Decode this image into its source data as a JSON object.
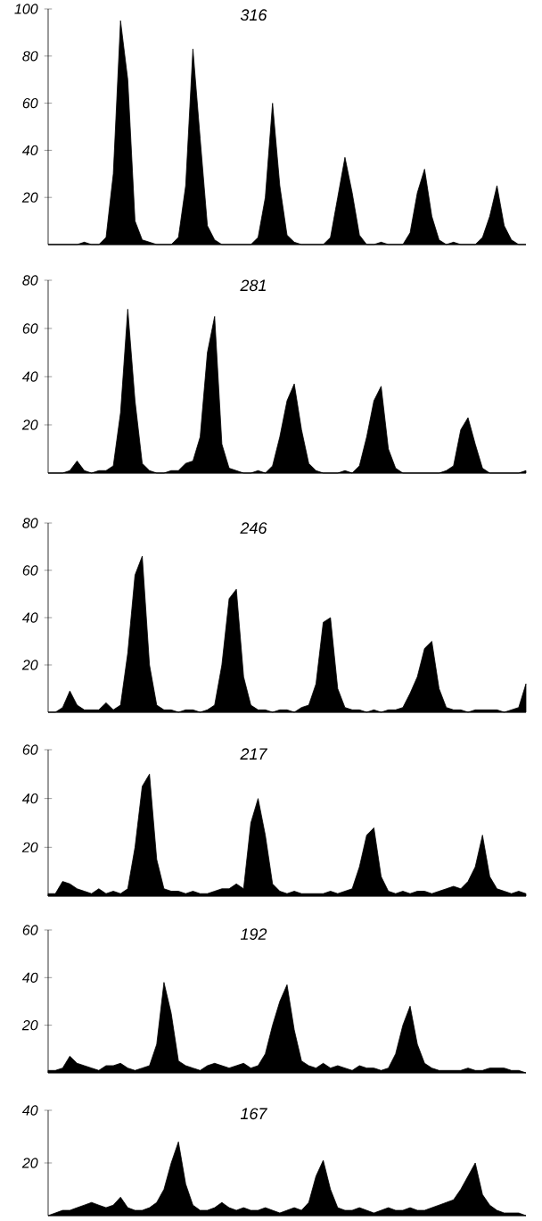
{
  "chart_data": [
    {
      "type": "area",
      "title": "316",
      "color": "#000000",
      "ylim": [
        0,
        100
      ],
      "yticks": [
        20,
        40,
        60,
        80,
        100
      ],
      "categories": [
        null,
        null,
        null,
        null,
        null,
        null,
        null,
        null,
        null,
        null,
        null,
        null,
        null,
        null,
        null,
        null,
        null,
        null,
        null,
        null,
        null,
        null,
        null,
        null,
        null,
        null,
        null,
        null,
        null,
        null,
        null,
        null,
        null,
        null,
        null,
        null,
        null,
        null,
        null,
        null,
        null,
        null,
        null,
        null,
        null,
        null,
        null,
        null,
        null,
        null,
        null,
        null,
        null,
        null,
        null,
        null,
        null,
        null,
        null,
        null,
        null,
        null,
        null,
        null,
        null,
        null,
        null
      ],
      "values": [
        0,
        0,
        0,
        0,
        0,
        1,
        0,
        0,
        3,
        30,
        95,
        70,
        10,
        2,
        1,
        0,
        0,
        0,
        3,
        25,
        83,
        45,
        8,
        2,
        0,
        0,
        0,
        0,
        0,
        3,
        20,
        60,
        25,
        4,
        1,
        0,
        0,
        0,
        0,
        3,
        20,
        37,
        22,
        4,
        0,
        0,
        1,
        0,
        0,
        0,
        5,
        22,
        32,
        12,
        2,
        0,
        1,
        0,
        0,
        0,
        3,
        12,
        25,
        8,
        2,
        0,
        0
      ]
    },
    {
      "type": "area",
      "title": "281",
      "color": "#000000",
      "ylim": [
        0,
        80
      ],
      "yticks": [
        20,
        40,
        60,
        80
      ],
      "categories": [
        null,
        null,
        null,
        null,
        null,
        null,
        null,
        null,
        null,
        null,
        null,
        null,
        null,
        null,
        null,
        null,
        null,
        null,
        null,
        null,
        null,
        null,
        null,
        null,
        null,
        null,
        null,
        null,
        null,
        null,
        null,
        null,
        null,
        null,
        null,
        null,
        null,
        null,
        null,
        null,
        null,
        null,
        null,
        null,
        null,
        null,
        null,
        null,
        null,
        null,
        null,
        null,
        null,
        null,
        null,
        null,
        null,
        null,
        null,
        null,
        null,
        null,
        null,
        null,
        null,
        null,
        null
      ],
      "values": [
        0,
        0,
        0,
        1,
        5,
        1,
        0,
        1,
        1,
        3,
        25,
        68,
        30,
        4,
        1,
        0,
        0,
        1,
        1,
        4,
        5,
        15,
        50,
        65,
        12,
        2,
        1,
        0,
        0,
        1,
        0,
        3,
        15,
        30,
        37,
        18,
        4,
        1,
        0,
        0,
        0,
        1,
        0,
        3,
        15,
        30,
        36,
        10,
        2,
        0,
        0,
        0,
        0,
        0,
        0,
        1,
        3,
        18,
        23,
        12,
        2,
        0,
        0,
        0,
        0,
        0,
        1
      ]
    },
    {
      "type": "area",
      "title": "246",
      "color": "#000000",
      "ylim": [
        0,
        80
      ],
      "yticks": [
        20,
        40,
        60,
        80
      ],
      "categories": [
        null,
        null,
        null,
        null,
        null,
        null,
        null,
        null,
        null,
        null,
        null,
        null,
        null,
        null,
        null,
        null,
        null,
        null,
        null,
        null,
        null,
        null,
        null,
        null,
        null,
        null,
        null,
        null,
        null,
        null,
        null,
        null,
        null,
        null,
        null,
        null,
        null,
        null,
        null,
        null,
        null,
        null,
        null,
        null,
        null,
        null,
        null,
        null,
        null,
        null,
        null,
        null,
        null,
        null,
        null,
        null,
        null,
        null,
        null,
        null,
        null,
        null,
        null,
        null,
        null,
        null,
        null
      ],
      "values": [
        0,
        0,
        2,
        9,
        3,
        1,
        1,
        1,
        4,
        1,
        3,
        25,
        58,
        66,
        20,
        3,
        1,
        1,
        0,
        1,
        1,
        0,
        1,
        3,
        20,
        48,
        52,
        15,
        3,
        1,
        1,
        0,
        1,
        1,
        0,
        2,
        3,
        12,
        38,
        40,
        10,
        2,
        1,
        1,
        0,
        1,
        0,
        1,
        1,
        2,
        8,
        15,
        27,
        30,
        10,
        2,
        1,
        1,
        0,
        1,
        1,
        1,
        1,
        0,
        1,
        2,
        12
      ]
    },
    {
      "type": "area",
      "title": "217",
      "color": "#000000",
      "ylim": [
        0,
        60
      ],
      "yticks": [
        20,
        40,
        60
      ],
      "categories": [
        null,
        null,
        null,
        null,
        null,
        null,
        null,
        null,
        null,
        null,
        null,
        null,
        null,
        null,
        null,
        null,
        null,
        null,
        null,
        null,
        null,
        null,
        null,
        null,
        null,
        null,
        null,
        null,
        null,
        null,
        null,
        null,
        null,
        null,
        null,
        null,
        null,
        null,
        null,
        null,
        null,
        null,
        null,
        null,
        null,
        null,
        null,
        null,
        null,
        null,
        null,
        null,
        null,
        null,
        null,
        null,
        null,
        null,
        null,
        null,
        null,
        null,
        null,
        null,
        null,
        null,
        null
      ],
      "values": [
        1,
        1,
        6,
        5,
        3,
        2,
        1,
        3,
        1,
        2,
        1,
        3,
        20,
        45,
        50,
        15,
        3,
        2,
        2,
        1,
        2,
        1,
        1,
        2,
        3,
        3,
        5,
        3,
        30,
        40,
        25,
        5,
        2,
        1,
        2,
        1,
        1,
        1,
        1,
        2,
        1,
        2,
        3,
        12,
        25,
        28,
        8,
        2,
        1,
        2,
        1,
        2,
        2,
        1,
        2,
        3,
        4,
        3,
        6,
        12,
        25,
        8,
        3,
        2,
        1,
        2,
        1
      ]
    },
    {
      "type": "area",
      "title": "192",
      "color": "#000000",
      "ylim": [
        0,
        60
      ],
      "yticks": [
        20,
        40,
        60
      ],
      "categories": [
        null,
        null,
        null,
        null,
        null,
        null,
        null,
        null,
        null,
        null,
        null,
        null,
        null,
        null,
        null,
        null,
        null,
        null,
        null,
        null,
        null,
        null,
        null,
        null,
        null,
        null,
        null,
        null,
        null,
        null,
        null,
        null,
        null,
        null,
        null,
        null,
        null,
        null,
        null,
        null,
        null,
        null,
        null,
        null,
        null,
        null,
        null,
        null,
        null,
        null,
        null,
        null,
        null,
        null,
        null,
        null,
        null,
        null,
        null,
        null,
        null,
        null,
        null,
        null,
        null,
        null,
        null
      ],
      "values": [
        1,
        1,
        2,
        7,
        4,
        3,
        2,
        1,
        3,
        3,
        4,
        2,
        1,
        2,
        3,
        12,
        38,
        25,
        5,
        3,
        2,
        1,
        3,
        4,
        3,
        2,
        3,
        4,
        2,
        3,
        8,
        20,
        30,
        37,
        18,
        5,
        3,
        2,
        4,
        2,
        3,
        2,
        1,
        3,
        2,
        2,
        1,
        2,
        8,
        20,
        28,
        12,
        4,
        2,
        1,
        1,
        1,
        1,
        2,
        1,
        1,
        2,
        2,
        2,
        1,
        1,
        0
      ]
    },
    {
      "type": "area",
      "title": "167",
      "color": "#000000",
      "ylim": [
        0,
        40
      ],
      "yticks": [
        20,
        40
      ],
      "categories": [
        null,
        null,
        null,
        null,
        null,
        null,
        null,
        null,
        null,
        null,
        null,
        null,
        null,
        null,
        null,
        null,
        null,
        null,
        null,
        null,
        null,
        null,
        null,
        null,
        null,
        null,
        null,
        null,
        null,
        null,
        null,
        null,
        null,
        null,
        null,
        null,
        null,
        null,
        null,
        null,
        null,
        null,
        null,
        null,
        null,
        null,
        null,
        null,
        null,
        null,
        null,
        null,
        null,
        null,
        null,
        null,
        null,
        null,
        null,
        null,
        null,
        null,
        null,
        null,
        null,
        null,
        null
      ],
      "values": [
        0,
        1,
        2,
        2,
        3,
        4,
        5,
        4,
        3,
        4,
        7,
        3,
        2,
        2,
        3,
        5,
        10,
        20,
        28,
        12,
        4,
        2,
        2,
        3,
        5,
        3,
        2,
        3,
        2,
        2,
        3,
        2,
        1,
        2,
        3,
        2,
        5,
        15,
        21,
        10,
        3,
        2,
        2,
        3,
        2,
        1,
        2,
        3,
        2,
        2,
        3,
        2,
        2,
        3,
        4,
        5,
        6,
        10,
        15,
        20,
        8,
        4,
        2,
        1,
        1,
        1,
        0
      ]
    }
  ]
}
